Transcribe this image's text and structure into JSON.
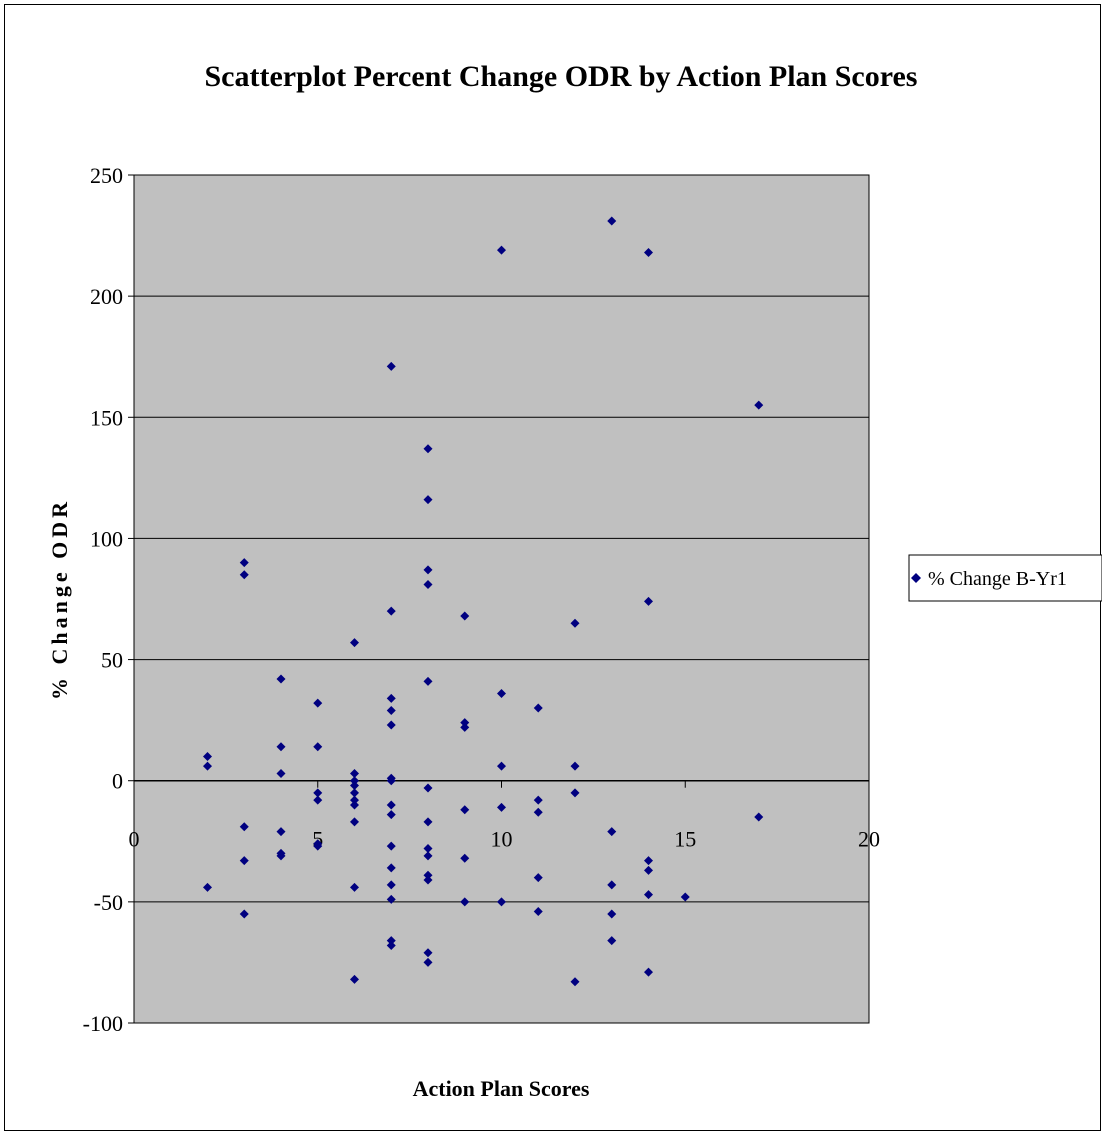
{
  "chart_data": {
    "type": "scatter",
    "title": "Scatterplot Percent Change ODR by Action Plan Scores",
    "xlabel": "Action Plan Scores",
    "ylabel": "% Change ODR",
    "xlim": [
      0,
      20
    ],
    "ylim": [
      -100,
      250
    ],
    "xticks": [
      "0",
      "5",
      "10",
      "15",
      "20"
    ],
    "yticks": [
      "250",
      "200",
      "150",
      "100",
      "50",
      "0",
      "-50",
      "-100"
    ],
    "grid": "horizontal",
    "background": "#c0c0c0",
    "marker_color": "#000080",
    "legend_position": "right",
    "series": [
      {
        "name": "% Change B-Yr1",
        "points": [
          [
            2,
            10
          ],
          [
            2,
            6
          ],
          [
            2,
            -44
          ],
          [
            3,
            90
          ],
          [
            3,
            85
          ],
          [
            3,
            -19
          ],
          [
            3,
            -33
          ],
          [
            3,
            -55
          ],
          [
            4,
            42
          ],
          [
            4,
            14
          ],
          [
            4,
            3
          ],
          [
            4,
            -21
          ],
          [
            4,
            -31
          ],
          [
            4,
            -30
          ],
          [
            5,
            32
          ],
          [
            5,
            14
          ],
          [
            5,
            -5
          ],
          [
            5,
            -8
          ],
          [
            5,
            -26
          ],
          [
            5,
            -27
          ],
          [
            6,
            57
          ],
          [
            6,
            3
          ],
          [
            6,
            0
          ],
          [
            6,
            -2
          ],
          [
            6,
            -5
          ],
          [
            6,
            -8
          ],
          [
            6,
            -10
          ],
          [
            6,
            -17
          ],
          [
            6,
            -44
          ],
          [
            6,
            -82
          ],
          [
            7,
            171
          ],
          [
            7,
            70
          ],
          [
            7,
            34
          ],
          [
            7,
            29
          ],
          [
            7,
            23
          ],
          [
            7,
            1
          ],
          [
            7,
            0
          ],
          [
            7,
            -10
          ],
          [
            7,
            -14
          ],
          [
            7,
            -27
          ],
          [
            7,
            -36
          ],
          [
            7,
            -43
          ],
          [
            7,
            -49
          ],
          [
            7,
            -66
          ],
          [
            7,
            -68
          ],
          [
            8,
            137
          ],
          [
            8,
            116
          ],
          [
            8,
            87
          ],
          [
            8,
            81
          ],
          [
            8,
            41
          ],
          [
            8,
            -3
          ],
          [
            8,
            -17
          ],
          [
            8,
            -28
          ],
          [
            8,
            -31
          ],
          [
            8,
            -39
          ],
          [
            8,
            -41
          ],
          [
            8,
            -71
          ],
          [
            8,
            -75
          ],
          [
            9,
            68
          ],
          [
            9,
            24
          ],
          [
            9,
            22
          ],
          [
            9,
            -12
          ],
          [
            9,
            -32
          ],
          [
            9,
            -50
          ],
          [
            10,
            219
          ],
          [
            10,
            36
          ],
          [
            10,
            6
          ],
          [
            10,
            -11
          ],
          [
            10,
            -50
          ],
          [
            11,
            30
          ],
          [
            11,
            -8
          ],
          [
            11,
            -13
          ],
          [
            11,
            -40
          ],
          [
            11,
            -54
          ],
          [
            12,
            65
          ],
          [
            12,
            6
          ],
          [
            12,
            -5
          ],
          [
            12,
            -83
          ],
          [
            13,
            231
          ],
          [
            13,
            -21
          ],
          [
            13,
            -43
          ],
          [
            13,
            -55
          ],
          [
            13,
            -66
          ],
          [
            14,
            218
          ],
          [
            14,
            74
          ],
          [
            14,
            -33
          ],
          [
            14,
            -37
          ],
          [
            14,
            -47
          ],
          [
            14,
            -79
          ],
          [
            15,
            -48
          ],
          [
            17,
            155
          ],
          [
            17,
            -15
          ]
        ]
      }
    ]
  }
}
